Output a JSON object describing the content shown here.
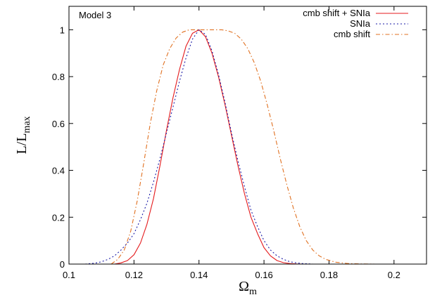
{
  "chart_data": {
    "type": "line",
    "annotation": "Model 3",
    "xlabel": {
      "main": "Ω",
      "sub": "m"
    },
    "ylabel": {
      "main": "L/L",
      "sub": "max"
    },
    "xlim": [
      0.1,
      0.21
    ],
    "ylim": [
      0,
      1.1
    ],
    "xticks": [
      "0.1",
      "0.12",
      "0.14",
      "0.16",
      "0.18",
      "0.2"
    ],
    "yticks": [
      "0",
      "0.2",
      "0.4",
      "0.6",
      "0.8",
      "1"
    ],
    "legend_position": "top-right",
    "series": [
      {
        "name": "cmb shift + SNIa",
        "color": "#e41a1c",
        "style": "solid",
        "x": [
          0.114,
          0.116,
          0.118,
          0.12,
          0.122,
          0.124,
          0.126,
          0.128,
          0.13,
          0.132,
          0.134,
          0.136,
          0.138,
          0.14,
          0.142,
          0.144,
          0.146,
          0.148,
          0.15,
          0.152,
          0.154,
          0.156,
          0.158,
          0.16,
          0.162,
          0.164,
          0.166,
          0.168,
          0.17,
          0.172
        ],
        "y": [
          0.0,
          0.005,
          0.015,
          0.04,
          0.09,
          0.17,
          0.28,
          0.42,
          0.57,
          0.71,
          0.83,
          0.93,
          0.985,
          1.0,
          0.97,
          0.9,
          0.8,
          0.68,
          0.55,
          0.42,
          0.3,
          0.2,
          0.13,
          0.07,
          0.035,
          0.015,
          0.006,
          0.002,
          0.0005,
          0.0
        ]
      },
      {
        "name": "SNIa",
        "color": "#1a1aa6",
        "style": "dotted",
        "x": [
          0.105,
          0.108,
          0.11,
          0.112,
          0.114,
          0.116,
          0.118,
          0.12,
          0.122,
          0.124,
          0.126,
          0.128,
          0.13,
          0.132,
          0.134,
          0.136,
          0.138,
          0.14,
          0.142,
          0.144,
          0.146,
          0.148,
          0.15,
          0.152,
          0.154,
          0.156,
          0.158,
          0.16,
          0.162,
          0.164,
          0.166,
          0.168,
          0.17,
          0.172,
          0.175
        ],
        "y": [
          0.0,
          0.004,
          0.01,
          0.02,
          0.035,
          0.06,
          0.09,
          0.13,
          0.19,
          0.26,
          0.35,
          0.45,
          0.56,
          0.67,
          0.78,
          0.88,
          0.96,
          1.0,
          0.98,
          0.91,
          0.81,
          0.69,
          0.56,
          0.44,
          0.33,
          0.23,
          0.16,
          0.1,
          0.06,
          0.035,
          0.02,
          0.01,
          0.005,
          0.002,
          0.0
        ]
      },
      {
        "name": "cmb shift",
        "color": "#e07020",
        "style": "dash-dot",
        "x": [
          0.113,
          0.115,
          0.117,
          0.119,
          0.121,
          0.123,
          0.125,
          0.127,
          0.129,
          0.131,
          0.133,
          0.135,
          0.137,
          0.139,
          0.141,
          0.143,
          0.145,
          0.147,
          0.149,
          0.151,
          0.153,
          0.155,
          0.157,
          0.159,
          0.161,
          0.163,
          0.165,
          0.167,
          0.169,
          0.171,
          0.173,
          0.175,
          0.177,
          0.179,
          0.182,
          0.186,
          0.19,
          0.194
        ],
        "y": [
          0.0,
          0.02,
          0.06,
          0.14,
          0.27,
          0.43,
          0.6,
          0.74,
          0.85,
          0.92,
          0.965,
          0.99,
          1.0,
          1.0,
          1.0,
          1.0,
          1.0,
          1.0,
          0.995,
          0.985,
          0.96,
          0.92,
          0.86,
          0.78,
          0.68,
          0.57,
          0.45,
          0.34,
          0.24,
          0.16,
          0.1,
          0.06,
          0.035,
          0.02,
          0.008,
          0.002,
          0.0005,
          0.0
        ]
      }
    ]
  }
}
